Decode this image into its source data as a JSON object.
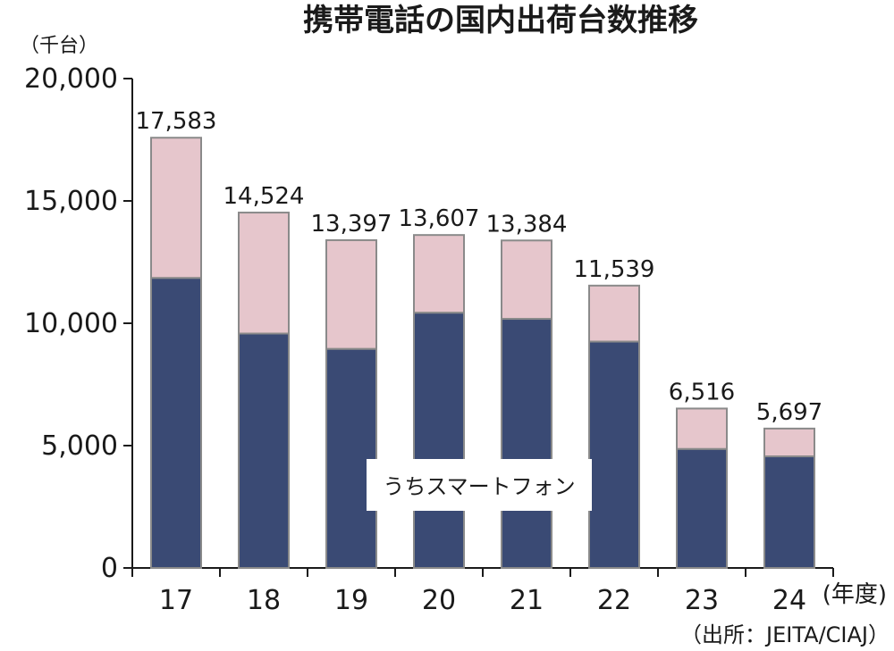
{
  "chart_data": {
    "type": "bar",
    "title": "携帯電話の国内出荷台数推移",
    "y_unit": "（千台）",
    "x_unit": "(年度)",
    "source": "（出所：JEITA/CIAJ）",
    "categories": [
      "17",
      "18",
      "19",
      "20",
      "21",
      "22",
      "23",
      "24"
    ],
    "totals": [
      17583,
      14524,
      13397,
      13607,
      13384,
      11539,
      6516,
      5697
    ],
    "total_labels": [
      "17,583",
      "14,524",
      "13,397",
      "13,607",
      "13,384",
      "11,539",
      "6,516",
      "5,697"
    ],
    "series": [
      {
        "name": "うちスマートフォン",
        "values": [
          11850,
          9580,
          8950,
          10430,
          10180,
          9250,
          4860,
          4560
        ]
      }
    ],
    "ylim": [
      0,
      20000
    ],
    "yticks": [
      0,
      5000,
      10000,
      15000,
      20000
    ],
    "ytick_labels": [
      "0",
      "5,000",
      "10,000",
      "15,000",
      "20,000"
    ],
    "colors": {
      "smartphone": "#3a4a74",
      "other": "#e6c6cc",
      "bar_edge": "#8a8a8a",
      "axis": "#1a1a1a"
    }
  }
}
